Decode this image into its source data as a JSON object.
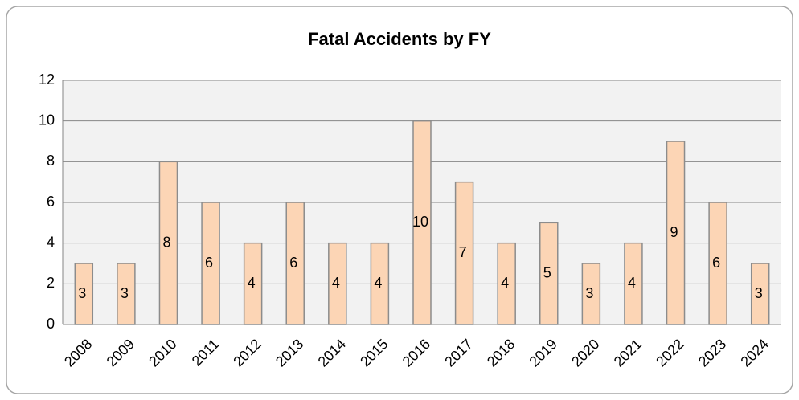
{
  "chart_data": {
    "type": "bar",
    "title": "Fatal Accidents by FY",
    "categories": [
      "2008",
      "2009",
      "2010",
      "2011",
      "2012",
      "2013",
      "2014",
      "2015",
      "2016",
      "2017",
      "2018",
      "2019",
      "2020",
      "2021",
      "2022",
      "2023",
      "2024"
    ],
    "values": [
      3,
      3,
      8,
      6,
      4,
      6,
      4,
      4,
      10,
      7,
      4,
      5,
      3,
      4,
      9,
      6,
      3
    ],
    "color": "#fcd5b5",
    "ylim": [
      0,
      12
    ],
    "yticks": [
      0,
      2,
      4,
      6,
      8,
      10,
      12
    ],
    "grid": true
  }
}
